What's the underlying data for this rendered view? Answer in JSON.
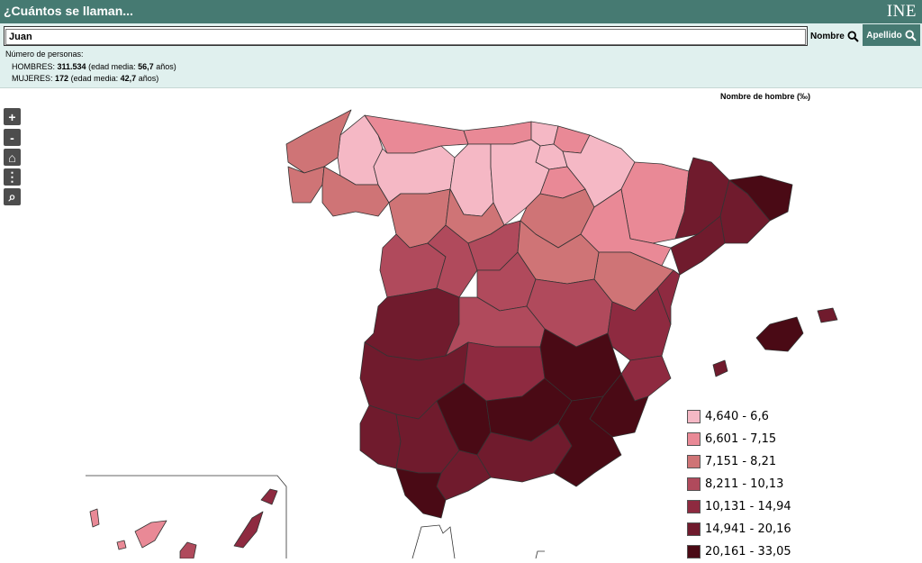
{
  "header": {
    "title": "¿Cuántos se llaman...",
    "logo": "INE"
  },
  "search": {
    "value": "Juan",
    "nombre_label": "Nombre",
    "apellido_label": "Apellido"
  },
  "stats": {
    "heading": "Número de personas:",
    "hombres_label": "HOMBRES:",
    "hombres_count": "311.534",
    "hombres_edad_label": "(edad media:",
    "hombres_edad": "56,7",
    "hombres_unit": "años)",
    "mujeres_label": "MUJERES:",
    "mujeres_count": "172",
    "mujeres_edad_label": "(edad media:",
    "mujeres_edad": "42,7",
    "mujeres_unit": "años)"
  },
  "map": {
    "title": "Nombre de hombre (‰)",
    "controls": [
      {
        "icon": "zoom-in-icon",
        "glyph": "+"
      },
      {
        "icon": "zoom-out-icon",
        "glyph": "-"
      },
      {
        "icon": "home-icon",
        "glyph": "⌂"
      },
      {
        "icon": "more-icon",
        "glyph": "⋮"
      },
      {
        "icon": "search-icon",
        "glyph": "⌕"
      }
    ],
    "legend": [
      {
        "label": "4,640 - 6,6",
        "color": "#f5b8c5"
      },
      {
        "label": "6,601 - 7,15",
        "color": "#e98996"
      },
      {
        "label": "7,151 - 8,21",
        "color": "#cf7476"
      },
      {
        "label": "8,211 - 10,13",
        "color": "#b04a5c"
      },
      {
        "label": "10,131 - 14,94",
        "color": "#8e2a40"
      },
      {
        "label": "14,941 - 20,16",
        "color": "#701b2d"
      },
      {
        "label": "20,161 - 33,05",
        "color": "#4a0a15"
      }
    ]
  }
}
